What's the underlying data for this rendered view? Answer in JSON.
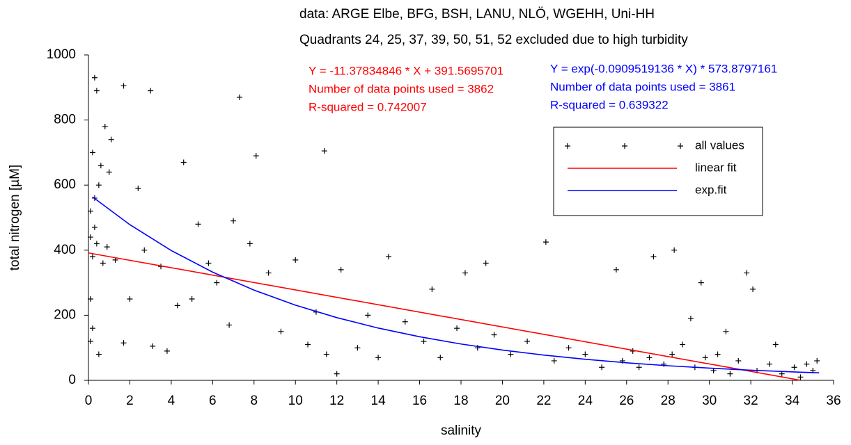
{
  "chart_data": {
    "type": "scatter",
    "title": "data: ARGE Elbe, BFG, BSH, LANU, NLÖ, WGEHH, Uni-HH",
    "subtitle": "Quadrants 24, 25, 37, 39, 50, 51, 52 excluded due to high turbidity",
    "x_label": "salinity",
    "y_label": "total nitrogen [µM]",
    "xlim": [
      0,
      36
    ],
    "xticks": [
      0,
      2,
      4,
      6,
      8,
      10,
      12,
      14,
      16,
      18,
      20,
      22,
      24,
      26,
      28,
      30,
      32,
      34,
      36
    ],
    "ylim": [
      0,
      1000
    ],
    "yticks": [
      0,
      200,
      400,
      600,
      800,
      1000
    ],
    "legend": "upper right",
    "annotations": [
      {
        "color": "#ff0000",
        "lines": [
          "Y = -11.37834846 * X + 391.5695701",
          "Number of data points used = 3862",
          "R-squared = 0.742007"
        ]
      },
      {
        "color": "#0000ff",
        "lines": [
          "Y = exp(-0.0909519136 * X) * 573.8797161",
          "Number of data points used = 3861",
          "R-squared = 0.639322"
        ]
      }
    ],
    "series": [
      {
        "name": "all values",
        "type": "scatter",
        "color": "#000000",
        "x": [
          0.1,
          0.1,
          0.1,
          0.1,
          0.2,
          0.2,
          0.2,
          0.3,
          0.3,
          0.3,
          0.4,
          0.4,
          0.5,
          0.5,
          0.6,
          0.7,
          0.8,
          0.9,
          1.0,
          1.1,
          1.3,
          1.7,
          1.7,
          2.0,
          2.4,
          2.7,
          3.0,
          3.1,
          3.5,
          3.8,
          4.3,
          4.6,
          5.0,
          5.3,
          5.8,
          6.2,
          6.8,
          7.0,
          7.3,
          7.8,
          8.1,
          8.7,
          9.3,
          10.0,
          10.6,
          11.0,
          11.4,
          11.5,
          12.0,
          12.2,
          13.0,
          13.5,
          14.0,
          14.5,
          15.3,
          16.2,
          16.6,
          17.0,
          17.8,
          18.2,
          18.8,
          19.2,
          19.6,
          20.4,
          21.2,
          22.1,
          22.5,
          23.2,
          24.0,
          24.8,
          25.5,
          25.8,
          26.3,
          26.6,
          27.1,
          27.3,
          27.8,
          28.2,
          28.3,
          28.7,
          29.1,
          29.3,
          29.6,
          29.8,
          30.2,
          30.4,
          30.8,
          31.0,
          31.4,
          31.8,
          32.1,
          32.3,
          32.9,
          33.2,
          33.5,
          34.1,
          34.4,
          34.7,
          35.0,
          35.2
        ],
        "values": [
          120,
          250,
          440,
          520,
          160,
          380,
          700,
          470,
          560,
          930,
          420,
          890,
          80,
          600,
          660,
          360,
          780,
          410,
          640,
          740,
          370,
          905,
          115,
          250,
          590,
          400,
          890,
          105,
          350,
          90,
          230,
          670,
          250,
          480,
          360,
          300,
          170,
          490,
          870,
          420,
          690,
          330,
          150,
          370,
          110,
          210,
          705,
          80,
          20,
          340,
          100,
          200,
          70,
          380,
          180,
          120,
          280,
          70,
          160,
          330,
          100,
          360,
          140,
          80,
          120,
          425,
          60,
          100,
          80,
          40,
          340,
          60,
          90,
          40,
          70,
          380,
          50,
          80,
          400,
          110,
          190,
          40,
          300,
          70,
          30,
          80,
          150,
          20,
          60,
          330,
          280,
          30,
          50,
          110,
          20,
          40,
          10,
          50,
          30,
          60
        ]
      },
      {
        "name": "linear fit",
        "type": "line",
        "color": "#ff0000",
        "x": [
          0,
          34.4
        ],
        "values": [
          391.6,
          0.2
        ]
      },
      {
        "name": "exp.fit",
        "type": "line",
        "color": "#0000ff",
        "x": [
          0.2,
          2,
          4,
          6,
          8,
          10,
          12,
          14,
          16,
          18,
          20,
          22,
          24,
          26,
          28,
          30,
          32,
          34,
          35.3
        ],
        "values": [
          563.5,
          478.4,
          398.9,
          332.6,
          277.3,
          231.1,
          192.7,
          160.6,
          133.9,
          111.6,
          93.1,
          77.6,
          64.7,
          53.9,
          44.9,
          37.5,
          31.2,
          26.0,
          23.1
        ]
      }
    ]
  }
}
